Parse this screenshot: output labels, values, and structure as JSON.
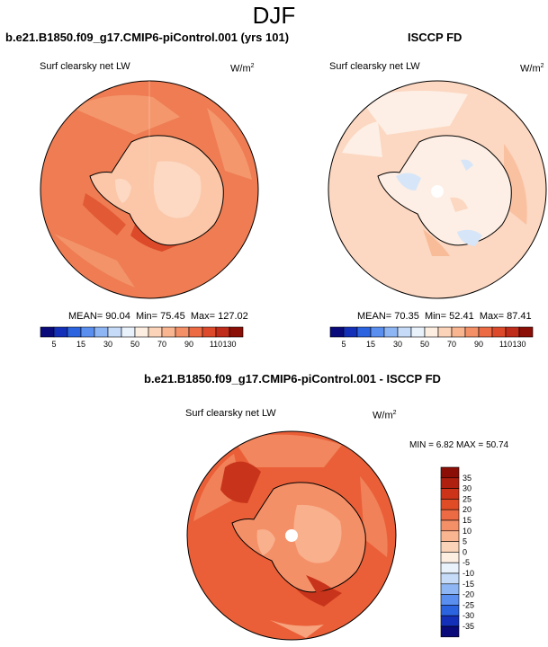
{
  "season": "DJF",
  "panels": [
    {
      "title": "b.e21.B1850.f09_g17.CMIP6-piControl.001 (yrs 101)",
      "variable": "Surf clearsky net LW",
      "units_base": "W/m",
      "units_exp": "2",
      "stats": {
        "mean_label": "MEAN=",
        "mean": "90.04",
        "min_label": "Min=",
        "min": "75.45",
        "max_label": "Max=",
        "max": "127.02"
      }
    },
    {
      "title": "ISCCP FD",
      "variable": "Surf clearsky net LW",
      "units_base": "W/m",
      "units_exp": "2",
      "stats": {
        "mean_label": "MEAN=",
        "mean": "70.35",
        "min_label": "Min=",
        "min": "52.41",
        "max_label": "Max=",
        "max": "87.41"
      }
    },
    {
      "title": "b.e21.B1850.f09_g17.CMIP6-piControl.001 - ISCCP FD",
      "variable": "Surf clearsky net LW",
      "units_base": "W/m",
      "units_exp": "2",
      "stats": {
        "min_label": "MIN =",
        "min": "6.82",
        "max_label": "MAX =",
        "max": "50.74"
      }
    }
  ],
  "colorbar_abs": {
    "labels": [
      "5",
      "15",
      "30",
      "50",
      "70",
      "90",
      "110",
      "130"
    ],
    "colors": [
      "#0a0a7a",
      "#1530b8",
      "#2c64e0",
      "#5a8fef",
      "#8fb6f4",
      "#c5dbf8",
      "#e9f1fb",
      "#fdeee2",
      "#fbd3b8",
      "#f9b490",
      "#f49068",
      "#ec6b44",
      "#dd4a2b",
      "#bf2c1a",
      "#8b0f07"
    ]
  },
  "colorbar_diff": {
    "labels": [
      "35",
      "30",
      "25",
      "20",
      "15",
      "10",
      "5",
      "0",
      "-5",
      "-10",
      "-15",
      "-20",
      "-25",
      "-30",
      "-35"
    ],
    "colors": [
      "#8b0f07",
      "#b0200f",
      "#cc3318",
      "#e04c25",
      "#ec6b44",
      "#f49068",
      "#f9b490",
      "#fbd3b8",
      "#fdeee2",
      "#e9f1fb",
      "#c5dbf8",
      "#8fb6f4",
      "#5a8fef",
      "#2c64e0",
      "#1530b8",
      "#0a0a7a"
    ]
  },
  "map_colors": {
    "panel1_base": "#ef7c52",
    "panel1_ice": "#fbc7a8",
    "panel1_mid": "#f59d74",
    "panel1_hot": "#dc4a2a",
    "panel2_base": "#fcd7c1",
    "panel2_ice": "#fdefe5",
    "panel2_blue": "#d6e6f8",
    "panel2_mid": "#f9bc98",
    "panel3_base": "#ea5f37",
    "panel3_ice": "#f49068",
    "panel3_dark": "#c8341b",
    "panel3_light": "#f9b490"
  }
}
